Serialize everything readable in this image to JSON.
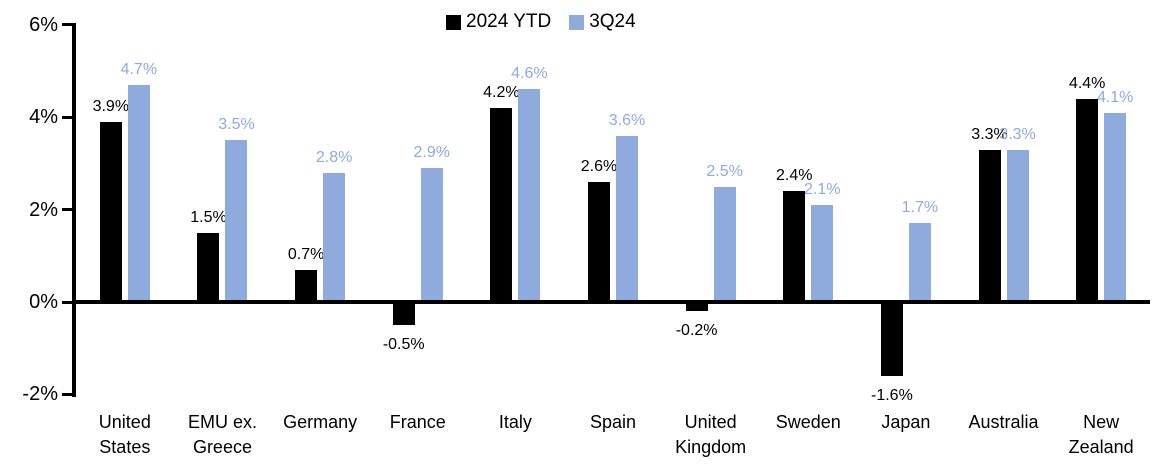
{
  "chart_data": {
    "type": "bar",
    "title": "",
    "xlabel": "",
    "ylabel": "",
    "categories": [
      "United States",
      "EMU ex. Greece",
      "Germany",
      "France",
      "Italy",
      "Spain",
      "United Kingdom",
      "Sweden",
      "Japan",
      "Australia",
      "New Zealand"
    ],
    "series": [
      {
        "name": "2024 YTD",
        "color": "#000000",
        "values": [
          3.9,
          1.5,
          0.7,
          -0.5,
          4.2,
          2.6,
          -0.2,
          2.4,
          -1.6,
          3.3,
          4.4
        ],
        "labels": [
          "3.9%",
          "1.5%",
          "0.7%",
          "-0.5%",
          "4.2%",
          "2.6%",
          "-0.2%",
          "2.4%",
          "-1.6%",
          "3.3%",
          "4.4%"
        ]
      },
      {
        "name": "3Q24",
        "color": "#8FAADC",
        "values": [
          4.7,
          3.5,
          2.8,
          2.9,
          4.6,
          3.6,
          2.5,
          2.1,
          1.7,
          3.3,
          4.1
        ],
        "labels": [
          "4.7%",
          "3.5%",
          "2.8%",
          "2.9%",
          "4.6%",
          "3.6%",
          "2.5%",
          "2.1%",
          "1.7%",
          "3.3%",
          "4.1%"
        ]
      }
    ],
    "y_axis": {
      "tick_labels": [
        "6%",
        "4%",
        "2%",
        "0%",
        "-2%"
      ],
      "tick_values": [
        6,
        4,
        2,
        0,
        -2
      ],
      "ylim": [
        -2,
        6
      ],
      "format": "percent"
    },
    "legend_position": "top-center",
    "grid": false,
    "data_labels": true,
    "axis_color": "#000000",
    "label_color_series_2": "#8FAADC"
  }
}
